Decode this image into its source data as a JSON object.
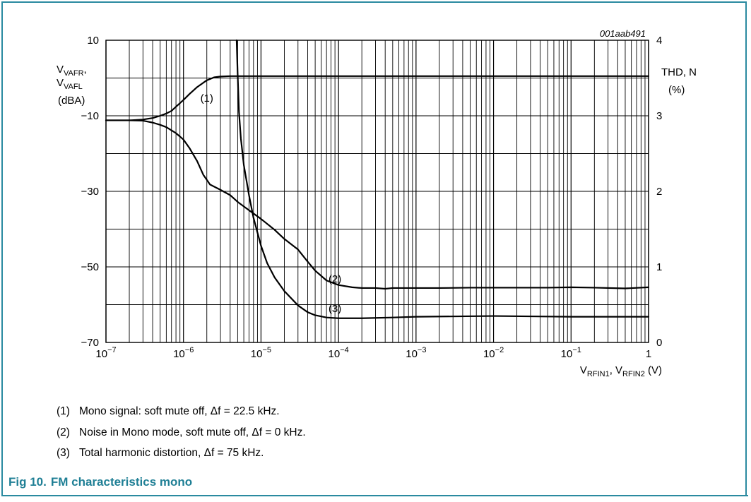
{
  "chart_data": {
    "type": "line",
    "code_id": "001aab491",
    "x_scale": "log",
    "xlim": [
      1e-07,
      1
    ],
    "x_ticks": [
      {
        "value": 1e-07,
        "base": "10",
        "exp": "−7"
      },
      {
        "value": 1e-06,
        "base": "10",
        "exp": "−6"
      },
      {
        "value": 1e-05,
        "base": "10",
        "exp": "−5"
      },
      {
        "value": 0.0001,
        "base": "10",
        "exp": "−4"
      },
      {
        "value": 0.001,
        "base": "10",
        "exp": "−3"
      },
      {
        "value": 0.01,
        "base": "10",
        "exp": "−2"
      },
      {
        "value": 0.1,
        "base": "10",
        "exp": "−1"
      },
      {
        "value": 1,
        "base": "1",
        "exp": ""
      }
    ],
    "xlabel": {
      "v1": "V",
      "s1": "RFIN1",
      "mid": ", V",
      "s2": "RFIN2",
      "unit": " (V)"
    },
    "y_left": {
      "label_line1": {
        "v": "V",
        "sub": "VAFR",
        "after": ","
      },
      "label_line2": {
        "v": "V",
        "sub": "VAFL",
        "after": ""
      },
      "label_line3": "(dBA)",
      "ylim": [
        -70,
        10
      ],
      "ticks": [
        {
          "value": 10,
          "text": "10"
        },
        {
          "value": -10,
          "text": "−10"
        },
        {
          "value": -30,
          "text": "−30"
        },
        {
          "value": -50,
          "text": "−50"
        },
        {
          "value": -70,
          "text": "−70"
        }
      ]
    },
    "y_right": {
      "label_line1": "THD, N",
      "label_line2": "(%)",
      "ylim": [
        0,
        4
      ],
      "ticks": [
        {
          "value": 4,
          "text": "4"
        },
        {
          "value": 3,
          "text": "3"
        },
        {
          "value": 2,
          "text": "2"
        },
        {
          "value": 1,
          "text": "1"
        },
        {
          "value": 0,
          "text": "0"
        }
      ]
    },
    "grid": true,
    "series": [
      {
        "name": "(1)",
        "axis": "left",
        "label_at": [
          2e-06,
          -5.5
        ],
        "x": [
          1e-07,
          2e-07,
          3e-07,
          4e-07,
          5e-07,
          6e-07,
          7e-07,
          8e-07,
          1e-06,
          1.2e-06,
          1.5e-06,
          2e-06,
          2.5e-06,
          3e-06,
          4e-06,
          5e-06,
          1e-05,
          0.0001,
          0.001,
          0.01,
          0.1,
          1
        ],
        "y": [
          -11.2,
          -11.2,
          -11.0,
          -10.6,
          -10.0,
          -9.4,
          -8.7,
          -7.6,
          -5.8,
          -4.2,
          -2.4,
          -0.6,
          0.2,
          0.4,
          0.5,
          0.5,
          0.5,
          0.5,
          0.5,
          0.5,
          0.5,
          0.5
        ]
      },
      {
        "name": "(2)",
        "axis": "left",
        "label_at": [
          9e-05,
          -53.4
        ],
        "x": [
          1e-07,
          2e-07,
          3e-07,
          4e-07,
          5e-07,
          6e-07,
          8e-07,
          1e-06,
          1.2e-06,
          1.5e-06,
          1.8e-06,
          2.2e-06,
          3e-06,
          4e-06,
          5e-06,
          7e-06,
          1e-05,
          1.5e-05,
          2e-05,
          3e-05,
          4e-05,
          5e-05,
          7e-05,
          0.0001,
          0.00015,
          0.0002,
          0.0003,
          0.0004,
          0.0005,
          0.001,
          0.002,
          0.005,
          0.01,
          0.05,
          0.1,
          0.2,
          0.5,
          1
        ],
        "y": [
          -11.2,
          -11.2,
          -11.3,
          -11.8,
          -12.4,
          -13.0,
          -14.6,
          -16.3,
          -18.6,
          -22.0,
          -25.6,
          -28.2,
          -29.6,
          -31.0,
          -32.8,
          -35.0,
          -37.3,
          -40.2,
          -42.6,
          -45.4,
          -48.6,
          -51.0,
          -53.6,
          -54.8,
          -55.4,
          -55.6,
          -55.6,
          -55.8,
          -55.6,
          -55.6,
          -55.6,
          -55.5,
          -55.5,
          -55.5,
          -55.4,
          -55.5,
          -55.7,
          -55.4
        ]
      },
      {
        "name": "(3)",
        "axis": "right",
        "label_at": [
          9e-05,
          0.44
        ],
        "x": [
          4.85e-06,
          5e-06,
          5.2e-06,
          5.5e-06,
          6e-06,
          7e-06,
          8e-06,
          1e-05,
          1.2e-05,
          1.5e-05,
          2e-05,
          3e-05,
          4e-05,
          5e-05,
          7e-05,
          0.0001,
          0.0002,
          0.0005,
          0.001,
          0.01,
          0.1,
          1
        ],
        "y": [
          4.0,
          3.55,
          3.05,
          2.7,
          2.35,
          1.95,
          1.65,
          1.28,
          1.05,
          0.86,
          0.68,
          0.49,
          0.4,
          0.36,
          0.33,
          0.32,
          0.32,
          0.33,
          0.34,
          0.35,
          0.34,
          0.34
        ]
      }
    ]
  },
  "notes": [
    {
      "num": "(1)",
      "text": "Mono signal: soft mute off, Δf = 22.5 kHz."
    },
    {
      "num": "(2)",
      "text": "Noise in Mono mode, soft mute off, Δf = 0 kHz."
    },
    {
      "num": "(3)",
      "text": "Total harmonic distortion, Δf = 75 kHz."
    }
  ],
  "caption": {
    "fig": "Fig 10.",
    "title": "FM characteristics mono"
  },
  "colors": {
    "frame": "#2a8aa0",
    "caption": "#1f7f95",
    "grid": "#000000",
    "curve": "#000000"
  }
}
